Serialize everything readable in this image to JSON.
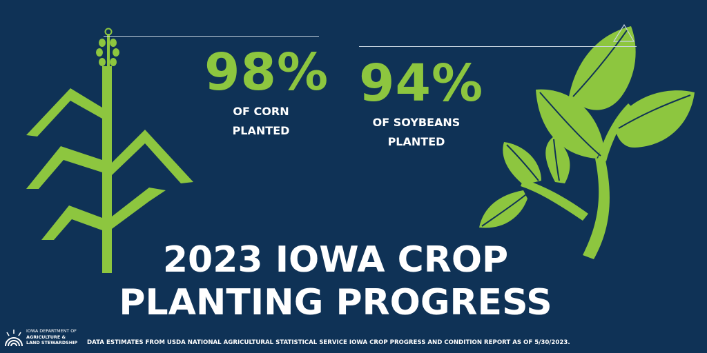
{
  "colors": {
    "background": "#0f3256",
    "accent_green": "#8dc63f",
    "text": "#ffffff"
  },
  "stats": {
    "corn": {
      "percent": "98%",
      "line1": "OF CORN",
      "line2": "PLANTED"
    },
    "soybeans": {
      "percent": "94%",
      "line1": "OF SOYBEANS",
      "line2": "PLANTED"
    }
  },
  "headline": {
    "line1": "2023 IOWA CROP",
    "line2": "PLANTING PROGRESS"
  },
  "logo": {
    "line1": "IOWA DEPARTMENT OF",
    "line2": "AGRICULTURE &",
    "line3": "LAND STEWARDSHIP",
    "icon": "sun-rays-icon"
  },
  "footer": {
    "source": "DATA ESTIMATES FROM USDA NATIONAL AGRICULTURAL STATISTICAL SERVICE IOWA CROP PROGRESS AND CONDITION REPORT AS OF 5/30/2023."
  },
  "illustrations": {
    "left": "corn-plant-icon",
    "right": "soybean-plant-icon"
  }
}
